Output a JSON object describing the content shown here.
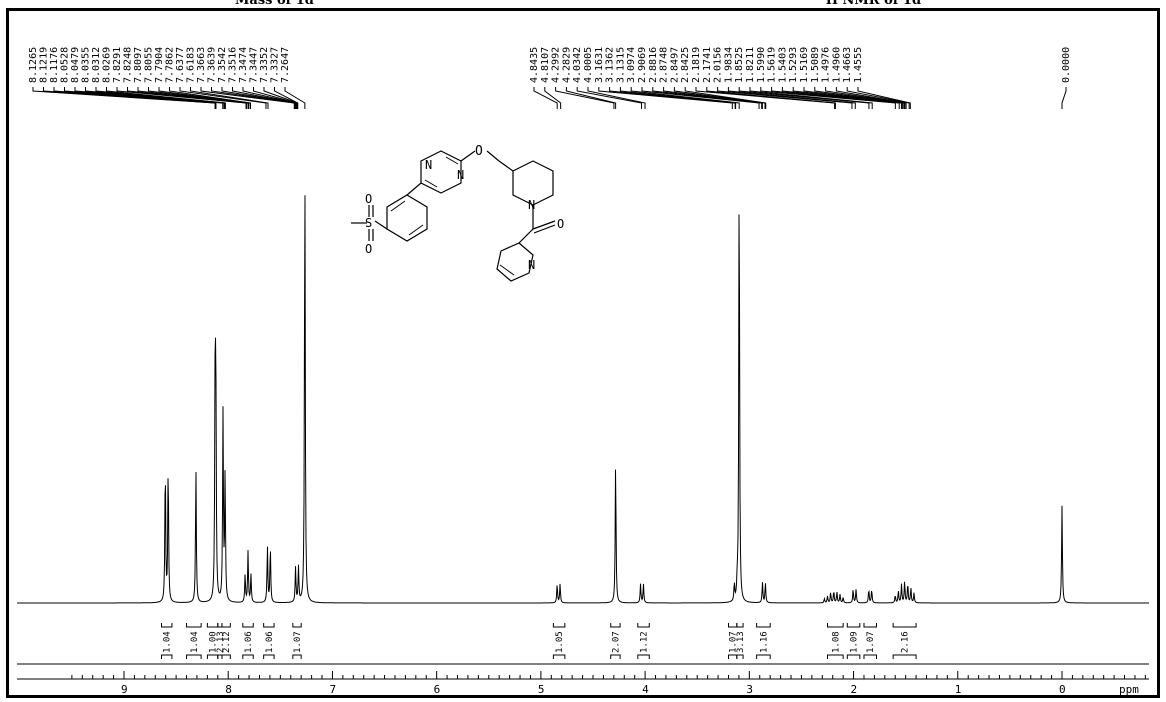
{
  "captions": {
    "left": "Mass of 1d",
    "right": "¹H NMR of 1d"
  },
  "chart_data": {
    "type": "line",
    "xlabel": "ppm",
    "xlim": [
      9.5,
      -1.0
    ],
    "x_reversed": true,
    "x_ticks": [
      {
        "value": 9,
        "label": "9"
      },
      {
        "value": 8,
        "label": "8"
      },
      {
        "value": 7,
        "label": "7"
      },
      {
        "value": 6,
        "label": "6"
      },
      {
        "value": 5,
        "label": "5"
      },
      {
        "value": 4,
        "label": "4"
      },
      {
        "value": 3,
        "label": "3"
      },
      {
        "value": 2,
        "label": "2"
      },
      {
        "value": 1,
        "label": "1"
      },
      {
        "value": 0,
        "label": "0"
      }
    ],
    "peaks": [
      {
        "ppm": 8.59,
        "height": 0.52,
        "shape": "doublet"
      },
      {
        "ppm": 8.31,
        "height": 0.5,
        "shape": "singlet"
      },
      {
        "ppm": 8.126,
        "height": 0.73,
        "shape": "singlet"
      },
      {
        "ppm": 8.12,
        "height": 0.45,
        "shape": "singlet"
      },
      {
        "ppm": 8.118,
        "height": 0.35,
        "shape": "singlet"
      },
      {
        "ppm": 8.05,
        "height": 0.7,
        "shape": "singlet"
      },
      {
        "ppm": 8.03,
        "height": 0.47,
        "shape": "singlet"
      },
      {
        "ppm": 7.81,
        "height": 0.19,
        "shape": "triplet"
      },
      {
        "ppm": 7.61,
        "height": 0.21,
        "shape": "doublet"
      },
      {
        "ppm": 7.34,
        "height": 0.13,
        "shape": "doublet"
      },
      {
        "ppm": 7.2647,
        "height": 1.65,
        "shape": "singlet"
      },
      {
        "ppm": 4.83,
        "height": 0.07,
        "shape": "doublet"
      },
      {
        "ppm": 4.2829,
        "height": 0.53,
        "shape": "singlet"
      },
      {
        "ppm": 4.03,
        "height": 0.07,
        "shape": "doublet"
      },
      {
        "ppm": 3.13,
        "height": 0.065,
        "shape": "doublet"
      },
      {
        "ppm": 3.0974,
        "height": 1.65,
        "shape": "singlet"
      },
      {
        "ppm": 2.86,
        "height": 0.075,
        "shape": "doublet"
      },
      {
        "ppm": 2.18,
        "height": 0.045,
        "shape": "multiplet"
      },
      {
        "ppm": 1.99,
        "height": 0.05,
        "shape": "doublet"
      },
      {
        "ppm": 1.84,
        "height": 0.05,
        "shape": "doublet"
      },
      {
        "ppm": 1.5,
        "height": 0.08,
        "shape": "multiplet"
      },
      {
        "ppm": 0.0,
        "height": 0.36,
        "shape": "singlet"
      }
    ],
    "peak_label_groups": [
      {
        "labels": [
          "8.1265",
          "8.1219",
          "8.1176",
          "8.0528",
          "8.0479",
          "8.0355",
          "8.0312",
          "8.0269",
          "7.8291",
          "7.8248",
          "7.8097",
          "7.8055",
          "7.7904",
          "7.7862",
          "7.6377",
          "7.6183",
          "7.3663",
          "7.3639",
          "7.3542",
          "7.3516",
          "7.3474",
          "7.3447",
          "7.3352",
          "7.3327",
          "7.2647"
        ]
      },
      {
        "labels": [
          "4.8435",
          "4.8107",
          "4.2992",
          "4.2829",
          "4.0342",
          "4.0005",
          "3.1631",
          "3.1362",
          "3.1315",
          "3.0974",
          "2.9069",
          "2.8816",
          "2.8748",
          "2.8497",
          "2.8425",
          "2.1819",
          "2.1741",
          "2.0156",
          "1.9834",
          "1.8525",
          "1.8211",
          "1.5990",
          "1.5619",
          "1.5403",
          "1.5293",
          "1.5169",
          "1.5089",
          "1.4976",
          "1.4960",
          "1.4663",
          "1.4555"
        ]
      },
      {
        "labels": [
          "0.0000"
        ]
      }
    ],
    "integrations": [
      {
        "label": "1.04",
        "from": 8.64,
        "to": 8.54
      },
      {
        "label": "1.04",
        "from": 8.4,
        "to": 8.26
      },
      {
        "label": "1.00",
        "from": 8.2,
        "to": 8.1
      },
      {
        "label": "2.13",
        "from": 8.1,
        "to": 8.06
      },
      {
        "label": "2.12",
        "from": 8.06,
        "to": 7.98
      },
      {
        "label": "1.06",
        "from": 7.86,
        "to": 7.76
      },
      {
        "label": "1.06",
        "from": 7.66,
        "to": 7.56
      },
      {
        "label": "1.07",
        "from": 7.38,
        "to": 7.3
      },
      {
        "label": "1.05",
        "from": 4.88,
        "to": 4.77
      },
      {
        "label": "2.07",
        "from": 4.33,
        "to": 4.24
      },
      {
        "label": "1.12",
        "from": 4.07,
        "to": 3.96
      },
      {
        "label": "1.07",
        "from": 3.2,
        "to": 3.12
      },
      {
        "label": "3.13",
        "from": 3.12,
        "to": 3.06
      },
      {
        "label": "1.16",
        "from": 2.93,
        "to": 2.8
      },
      {
        "label": "1.08",
        "from": 2.25,
        "to": 2.1
      },
      {
        "label": "1.09",
        "from": 2.06,
        "to": 1.94
      },
      {
        "label": "1.07",
        "from": 1.9,
        "to": 1.78
      },
      {
        "label": "2.16",
        "from": 1.62,
        "to": 1.4
      }
    ],
    "structure_atom_labels": [
      "O",
      "N",
      "N",
      "N",
      "O",
      "N",
      "S",
      "O",
      "O"
    ]
  }
}
